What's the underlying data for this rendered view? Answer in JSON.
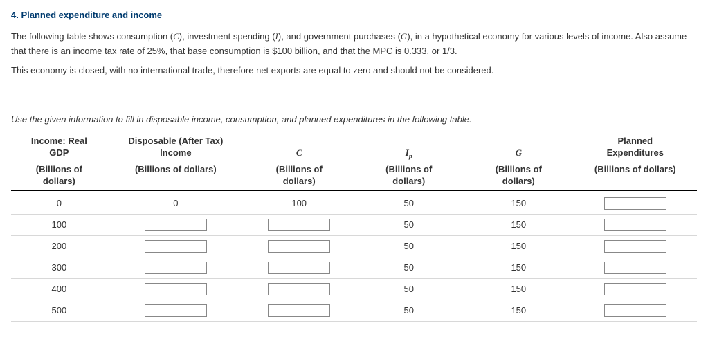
{
  "heading": "4. Planned expenditure and income",
  "para1_pre": "The following table shows consumption (",
  "para1_c": "C",
  "para1_mid1": "), investment spending (",
  "para1_i": "I",
  "para1_mid2": "), and government purchases (",
  "para1_g": "G",
  "para1_post": "), in a hypothetical economy for various levels of income. Also assume that there is an income tax rate of 25%, that base consumption is $100 billion, and that the MPC is 0.333, or 1/3.",
  "para2": "This economy is closed, with no international trade, therefore net exports are equal to zero and should not be considered.",
  "instruction": "Use the given information to fill in disposable income, consumption, and planned expenditures in the following table.",
  "table": {
    "columns": [
      {
        "line1": "Income: Real",
        "line2": "GDP",
        "unit": "(Billions of dollars)"
      },
      {
        "line1": "Disposable (After Tax)",
        "line2": "Income",
        "unit": "(Billions of dollars)"
      },
      {
        "sym": "C",
        "unit": "(Billions of dollars)"
      },
      {
        "sym": "I",
        "sub": "p",
        "unit": "(Billions of dollars)"
      },
      {
        "sym": "G",
        "unit": "(Billions of dollars)"
      },
      {
        "line1": "Planned",
        "line2": "Expenditures",
        "unit": "(Billions of dollars)"
      }
    ],
    "rows": [
      {
        "gdp": "0",
        "disp": "0",
        "c": "100",
        "ip": "50",
        "g": "150"
      },
      {
        "gdp": "100",
        "disp": "",
        "c": "",
        "ip": "50",
        "g": "150"
      },
      {
        "gdp": "200",
        "disp": "",
        "c": "",
        "ip": "50",
        "g": "150"
      },
      {
        "gdp": "300",
        "disp": "",
        "c": "",
        "ip": "50",
        "g": "150"
      },
      {
        "gdp": "400",
        "disp": "",
        "c": "",
        "ip": "50",
        "g": "150"
      },
      {
        "gdp": "500",
        "disp": "",
        "c": "",
        "ip": "50",
        "g": "150"
      }
    ]
  }
}
